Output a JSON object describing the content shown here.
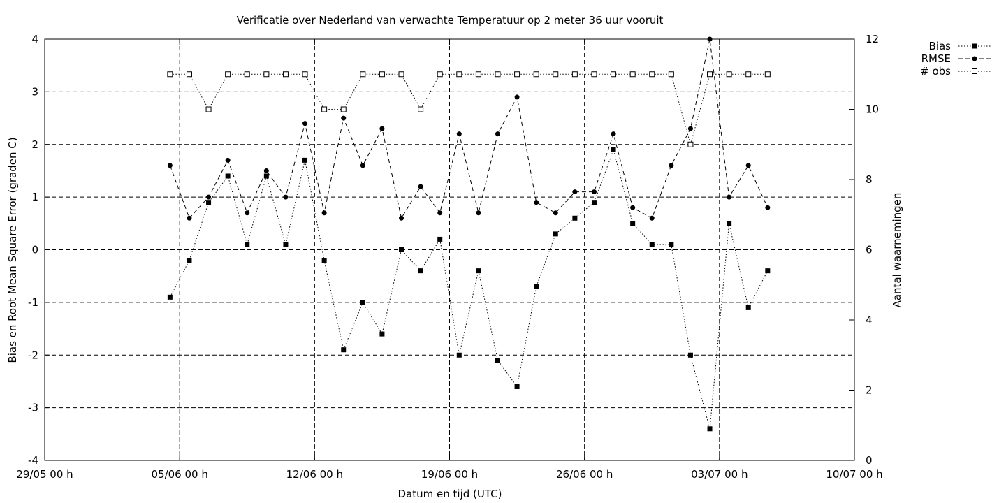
{
  "chart_data": {
    "type": "line",
    "title": "Verificatie over Nederland van verwachte Temperatuur op 2 meter 36 uur vooruit",
    "xlabel": "Datum en tijd (UTC)",
    "ylabel": "Bias en Root Mean Square Error (graden C)",
    "y2label": "Aantal waarnemingen",
    "xlim": [
      0,
      42
    ],
    "ylim": [
      -4,
      4
    ],
    "y2lim": [
      0,
      12
    ],
    "x_unit": "days since 29/05 00 h",
    "xticks": [
      {
        "x": 0,
        "label": "29/05 00 h"
      },
      {
        "x": 7,
        "label": "05/06 00 h"
      },
      {
        "x": 14,
        "label": "12/06 00 h"
      },
      {
        "x": 21,
        "label": "19/06 00 h"
      },
      {
        "x": 28,
        "label": "26/06 00 h"
      },
      {
        "x": 35,
        "label": "03/07 00 h"
      },
      {
        "x": 42,
        "label": "10/07 00 h"
      }
    ],
    "yticks": [
      "-4",
      "-3",
      "-2",
      "-1",
      "0",
      "1",
      "2",
      "3",
      "4"
    ],
    "y2ticks": [
      "0",
      "2",
      "4",
      "6",
      "8",
      "10",
      "12"
    ],
    "grid": true,
    "legend_position": "top-right, outside plot",
    "x": [
      6.5,
      7.5,
      8.5,
      9.5,
      10.5,
      11.5,
      12.5,
      13.5,
      14.5,
      15.5,
      16.5,
      17.5,
      18.5,
      19.5,
      20.5,
      21.5,
      22.5,
      23.5,
      24.5,
      25.5,
      26.5,
      27.5,
      28.5,
      29.5,
      30.5,
      31.5,
      32.5,
      33.5,
      34.5,
      35.5,
      36.5,
      37.5
    ],
    "series": [
      {
        "name": "Bias",
        "axis": "y1",
        "style": "dotted",
        "marker": "filled-square",
        "values": [
          -0.9,
          -0.2,
          0.9,
          1.4,
          0.1,
          1.4,
          0.1,
          1.7,
          -0.2,
          -1.9,
          -1.0,
          -1.6,
          0.0,
          -0.4,
          0.2,
          -2.0,
          -0.4,
          -2.1,
          -2.6,
          -0.7,
          0.3,
          0.6,
          0.9,
          1.9,
          0.5,
          0.1,
          0.1,
          -2.0,
          -3.4,
          0.5,
          -1.1,
          -0.4
        ]
      },
      {
        "name": "RMSE",
        "axis": "y1",
        "style": "dashed",
        "marker": "filled-circle",
        "values": [
          1.6,
          0.6,
          1.0,
          1.7,
          0.7,
          1.5,
          1.0,
          2.4,
          0.7,
          2.5,
          1.6,
          2.3,
          0.6,
          1.2,
          0.7,
          2.2,
          0.7,
          2.2,
          2.9,
          0.9,
          0.7,
          1.1,
          1.1,
          2.2,
          0.8,
          0.6,
          1.6,
          2.3,
          4.0,
          1.0,
          1.6,
          0.8
        ]
      },
      {
        "name": "# obs",
        "axis": "y2",
        "style": "dotted",
        "marker": "open-square",
        "values": [
          11,
          11,
          10,
          11,
          11,
          11,
          11,
          11,
          10,
          10,
          11,
          11,
          11,
          10,
          11,
          11,
          11,
          11,
          11,
          11,
          11,
          11,
          11,
          11,
          11,
          11,
          11,
          9,
          11,
          11,
          11,
          11
        ]
      }
    ]
  }
}
